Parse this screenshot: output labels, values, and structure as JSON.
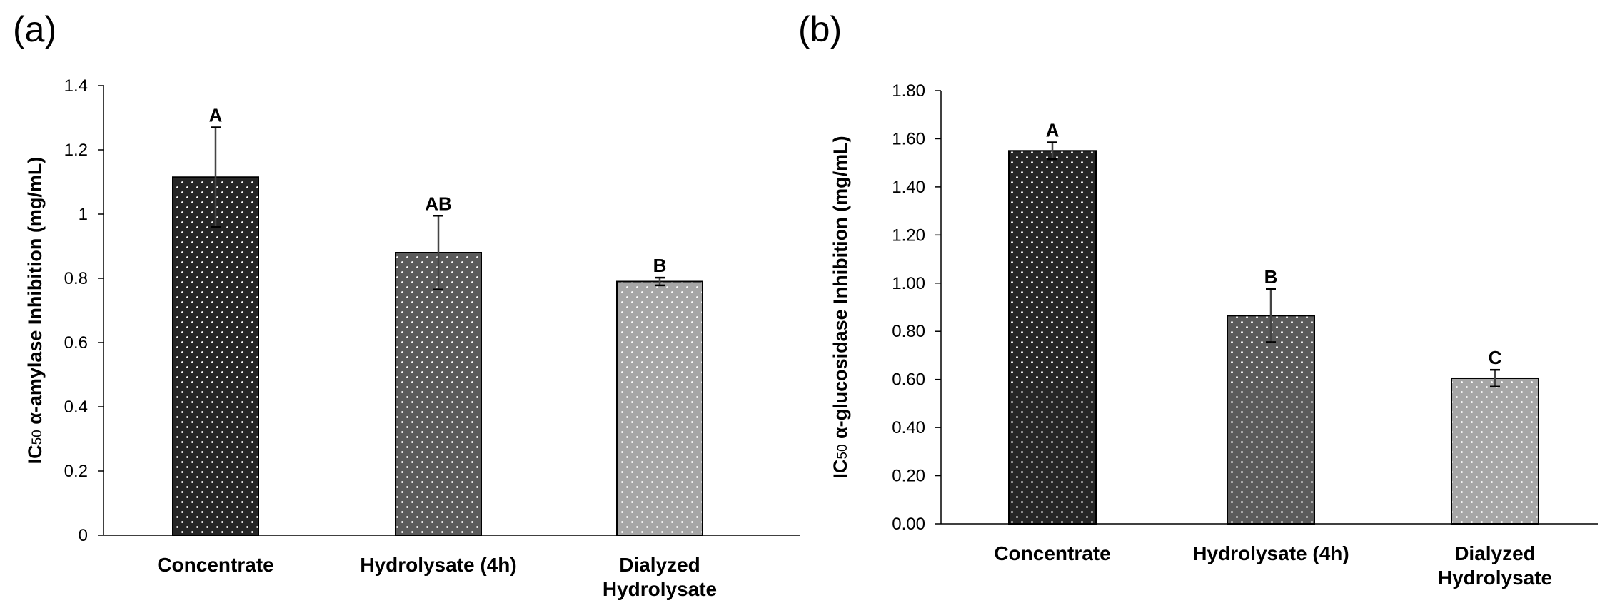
{
  "chart_data": [
    {
      "panel_label": "(a)",
      "type": "bar",
      "ylabel_prefix": "IC",
      "ylabel_sub": "50",
      "ylabel_rest": " α-amylase Inhibition (mg/mL)",
      "ylim": [
        0,
        1.4
      ],
      "yticks": [
        "0",
        "0.2",
        "0.4",
        "0.6",
        "0.8",
        "1",
        "1.2",
        "1.4"
      ],
      "categories": [
        [
          "Concentrate"
        ],
        [
          "Hydrolysate (4h)"
        ],
        [
          "Dialyzed",
          "Hydrolysate"
        ]
      ],
      "values": [
        1.115,
        0.88,
        0.79
      ],
      "errors": [
        0.155,
        0.115,
        0.012
      ],
      "significance": [
        "A",
        "AB",
        "B"
      ],
      "bar_colors": [
        "#262626",
        "#5b5b5b",
        "#a6a6a6"
      ],
      "grid": false
    },
    {
      "panel_label": "(b)",
      "type": "bar",
      "ylabel_prefix": "IC",
      "ylabel_sub": "50",
      "ylabel_rest": " α-glucosidase Inhibition (mg/mL)",
      "ylim": [
        0,
        1.8
      ],
      "yticks": [
        "0.00",
        "0.20",
        "0.40",
        "0.60",
        "0.80",
        "1.00",
        "1.20",
        "1.40",
        "1.60",
        "1.80"
      ],
      "categories": [
        [
          "Concentrate"
        ],
        [
          "Hydrolysate (4h)"
        ],
        [
          "Dialyzed",
          "Hydrolysate"
        ]
      ],
      "values": [
        1.55,
        0.865,
        0.605
      ],
      "errors": [
        0.035,
        0.11,
        0.035
      ],
      "significance": [
        "A",
        "B",
        "C"
      ],
      "bar_colors": [
        "#262626",
        "#5b5b5b",
        "#a6a6a6"
      ],
      "grid": false
    }
  ]
}
